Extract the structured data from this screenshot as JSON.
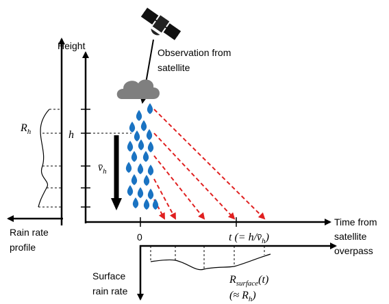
{
  "labels": {
    "height": "Height",
    "observation": [
      "Observation from",
      "satellite"
    ],
    "rain_rate_profile": [
      "Rain rate",
      "profile"
    ],
    "time_axis": [
      "Time from",
      "satellite",
      "overpass"
    ],
    "surface_rain_rate": [
      "Surface",
      "rain rate"
    ],
    "zero": "0",
    "h": "h",
    "r_h": {
      "base": "R",
      "sub": "h"
    },
    "v_h": {
      "base": "v̄",
      "sub": "h"
    },
    "t_label": {
      "pre": "t (= h/v̄",
      "sub": "h",
      "post": ")"
    },
    "r_surface": {
      "base": "R",
      "sub": "surface",
      "post": "(t)"
    },
    "approx": {
      "pre": "(≈ R",
      "sub": "h",
      "post": ")"
    }
  }
}
